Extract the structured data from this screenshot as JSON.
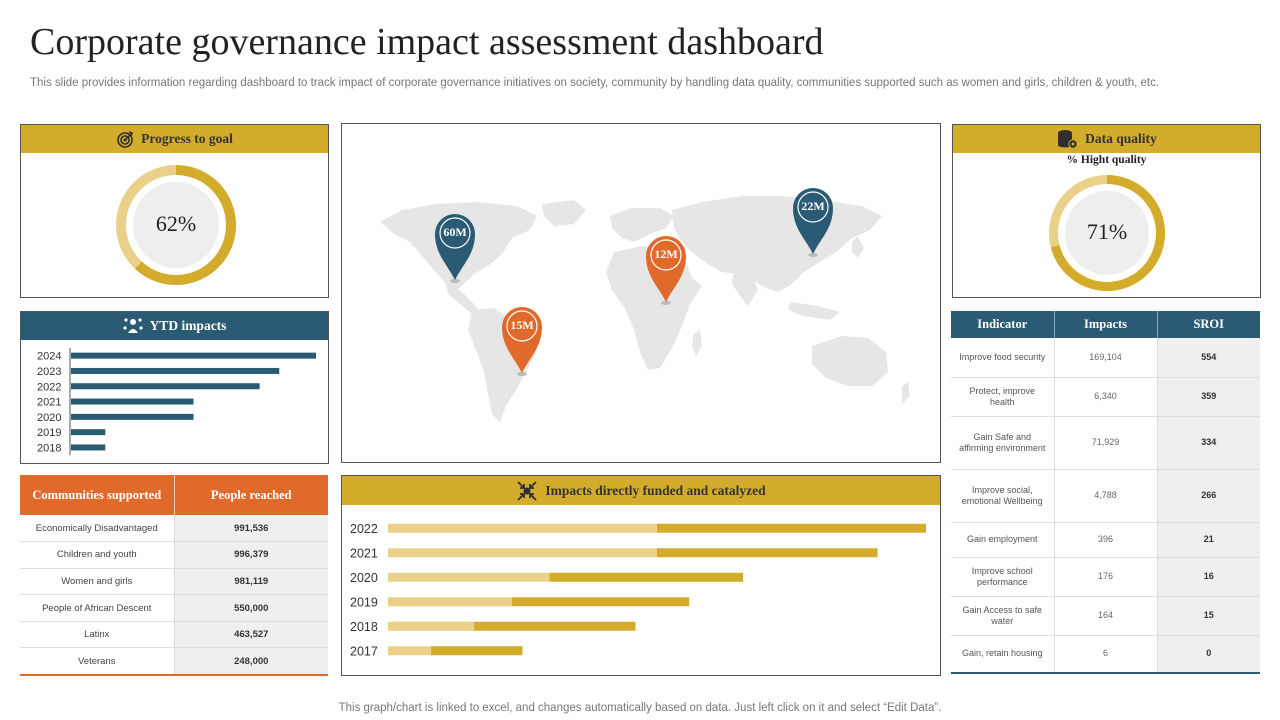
{
  "page": {
    "title": "Corporate governance impact assessment dashboard",
    "subtitle": "This slide provides information regarding dashboard to track impact of corporate governance initiatives on society, community by handling data quality, communities supported such as women and girls, children & youth, etc.",
    "footer": "This graph/chart is linked to excel,  and changes automatically based on data. Just left click on it and select “Edit Data”."
  },
  "colors": {
    "gold": "#d4ac2b",
    "gold_light": "#ebd08a",
    "navy": "#2a5a74",
    "orange": "#e06a2c",
    "map_gray": "#e6e6e6"
  },
  "progress": {
    "header": "Progress to goal",
    "icon": "target-icon",
    "percent_label": "62%",
    "value": 62
  },
  "quality": {
    "header": "Data quality",
    "icon": "database-gear-icon",
    "sublabel": "% Hight quality",
    "percent_label": "71%",
    "value": 71
  },
  "map": {
    "icon": "world-map",
    "pins": [
      {
        "label": "60M",
        "color": "navy"
      },
      {
        "label": "22M",
        "color": "navy"
      },
      {
        "label": "12M",
        "color": "orange"
      },
      {
        "label": "15M",
        "color": "orange"
      }
    ]
  },
  "communities": {
    "headers": [
      "Communities supported",
      "People reached"
    ],
    "rows": [
      [
        "Economically Disadvantaged",
        "991,536"
      ],
      [
        "Children and youth",
        "996,379"
      ],
      [
        "Women and girls",
        "981,119"
      ],
      [
        "People of African Descent",
        "550,000"
      ],
      [
        "Latinx",
        "463,527"
      ],
      [
        "Veterans",
        "248,000"
      ]
    ]
  },
  "indicators": {
    "headers": [
      "Indicator",
      "Impacts",
      "SROI"
    ],
    "rows": [
      [
        "Improve food security",
        "169,104",
        "554"
      ],
      [
        "Protect, improve health",
        "6,340",
        "359"
      ],
      [
        "Gain Safe and affirming environment",
        "71,929",
        "334"
      ],
      [
        "Improve social, emotional Wellbeing",
        "4,788",
        "266"
      ],
      [
        "Gain employment",
        "396",
        "21"
      ],
      [
        "Improve school performance",
        "176",
        "16"
      ],
      [
        "Gain Access to safe water",
        "164",
        "15"
      ],
      [
        "Gain, retain housing",
        "6",
        "0"
      ]
    ]
  },
  "chart_data": [
    {
      "type": "bar",
      "orientation": "horizontal",
      "title": "YTD impacts",
      "icon": "people-network-icon",
      "categories": [
        "2024",
        "2023",
        "2022",
        "2021",
        "2020",
        "2019",
        "2018"
      ],
      "values": [
        100,
        85,
        77,
        50,
        50,
        14,
        14
      ],
      "xlim": [
        0,
        100
      ],
      "grid": false
    },
    {
      "type": "bar",
      "orientation": "horizontal",
      "stacked": true,
      "title": "Impacts directly funded and catalyzed",
      "icon": "arrows-center-icon",
      "categories": [
        "2022",
        "2021",
        "2020",
        "2019",
        "2018",
        "2017"
      ],
      "series": [
        {
          "values": [
            50,
            50,
            30,
            23,
            16,
            8
          ]
        },
        {
          "values": [
            50,
            41,
            36,
            33,
            30,
            17
          ]
        }
      ],
      "xlim": [
        0,
        100
      ],
      "grid": false
    }
  ]
}
